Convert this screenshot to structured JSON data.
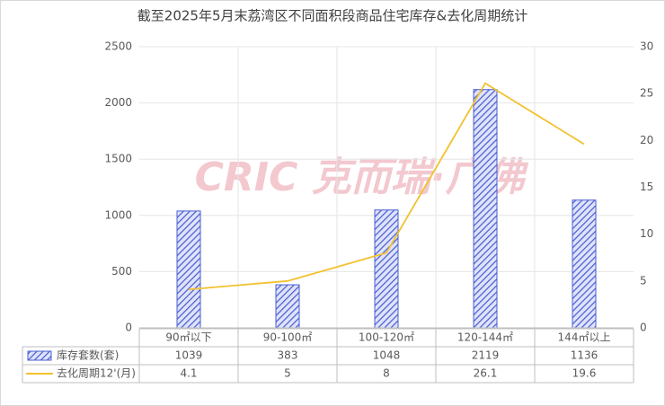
{
  "chart_data": {
    "type": "bar_line",
    "title": "截至2025年5月末荔湾区不同面积段商品住宅库存&去化周期统计",
    "watermark": "CRIC 克而瑞·广佛",
    "categories": [
      "90㎡以下",
      "90-100㎡",
      "100-120㎡",
      "120-144㎡",
      "144㎡以上"
    ],
    "series": [
      {
        "name": "库存套数(套)",
        "color": "#4a5fd0",
        "type": "bar",
        "values": [
          1039,
          383,
          1048,
          2119,
          1136
        ]
      },
      {
        "name": "去化周期12'(月)",
        "color": "#f2c12e",
        "type": "line",
        "axis": "y2",
        "values": [
          4.1,
          5,
          8,
          26.1,
          19.6
        ]
      }
    ],
    "ylim": [
      0,
      2500
    ],
    "yticks": [
      0,
      500,
      1000,
      1500,
      2000,
      2500
    ],
    "y2lim": [
      0,
      30
    ],
    "y2ticks": [
      0,
      5,
      10,
      15,
      20,
      25,
      30
    ],
    "grid": true
  }
}
